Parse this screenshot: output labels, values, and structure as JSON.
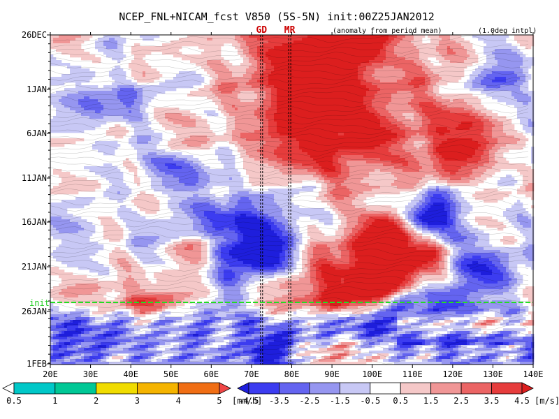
{
  "chart_data": {
    "type": "heatmap",
    "title": "NCEP_FNL+NICAM_fcst V850 (5S-5N) init:00Z25JAN2012",
    "note_left": "(anomaly from period mean)",
    "note_right": "(1.0deg intpl)",
    "x_ticks": [
      "20E",
      "30E",
      "40E",
      "50E",
      "60E",
      "70E",
      "80E",
      "90E",
      "100E",
      "110E",
      "120E",
      "130E",
      "140E"
    ],
    "xlim": [
      20,
      140
    ],
    "y_ticks": [
      "26DEC",
      "1JAN",
      "6JAN",
      "11JAN",
      "16JAN",
      "21JAN",
      "26JAN",
      "1FEB"
    ],
    "init_label": "init",
    "markers": [
      {
        "label": "GD",
        "lon": 72.5
      },
      {
        "label": "MR",
        "lon": 79.5
      }
    ],
    "precip_bar": {
      "labels": [
        "0.5",
        "1",
        "2",
        "3",
        "4",
        "5"
      ],
      "unit": "[mm/h]",
      "colors": [
        "#ffffff",
        "#00c8c8",
        "#00c896",
        "#f0dc00",
        "#f5b400",
        "#f06e14",
        "#f04646"
      ]
    },
    "wind_bar": {
      "labels": [
        "-4.5",
        "-3.5",
        "-2.5",
        "-1.5",
        "-0.5",
        "0.5",
        "1.5",
        "2.5",
        "3.5",
        "4.5"
      ],
      "unit": "[m/s]",
      "colors": [
        "#1e1edc",
        "#3c3cf0",
        "#6464f0",
        "#9696f0",
        "#c8c8f5",
        "#ffffff",
        "#f5c8c8",
        "#f09696",
        "#eb6464",
        "#e63c3c",
        "#dc1e1e"
      ]
    }
  }
}
